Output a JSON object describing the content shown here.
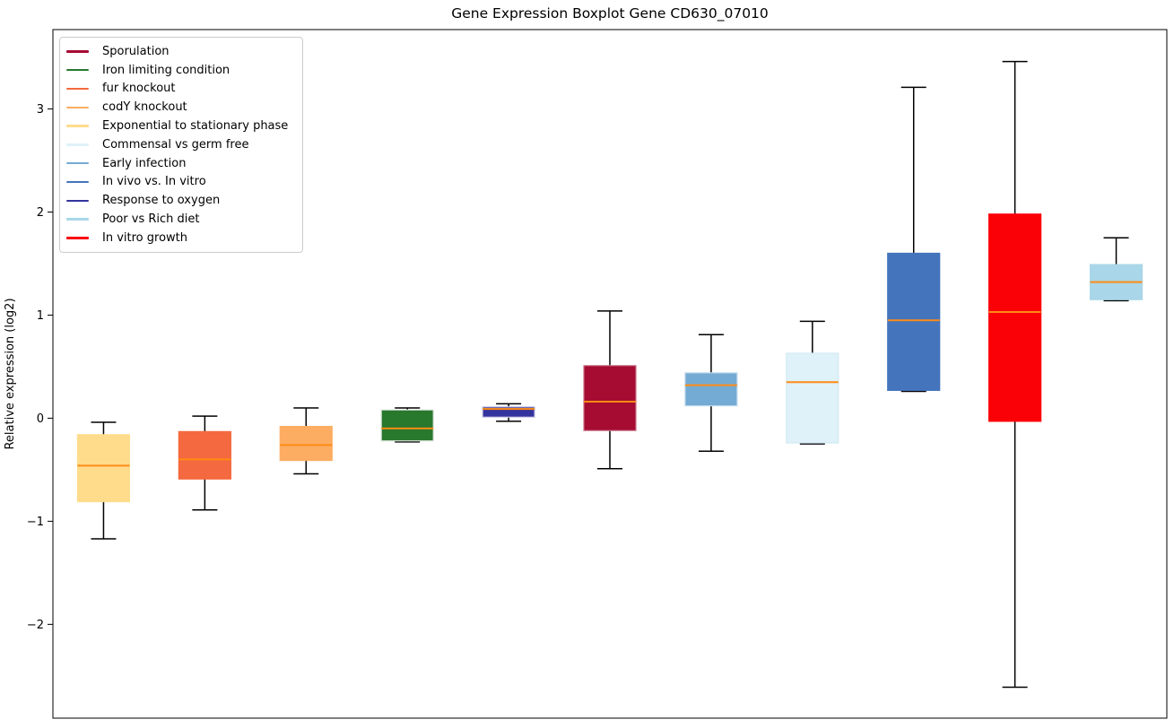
{
  "chart_data": {
    "type": "boxplot",
    "title": "Gene Expression Boxplot Gene CD630_07010",
    "ylabel": "Relative expression (log2)",
    "xlabel": "",
    "ylim": [
      -2.91,
      3.77
    ],
    "grid": false,
    "legend_position": "upper left",
    "median_color": "#ff8c14",
    "whisker_color": "#000000",
    "yticks": [
      {
        "value": 3,
        "label": "3"
      },
      {
        "value": 2,
        "label": "2"
      },
      {
        "value": 1,
        "label": "1"
      },
      {
        "value": 0,
        "label": "0"
      },
      {
        "value": -1,
        "label": "−1"
      },
      {
        "value": -2,
        "label": "−2"
      }
    ],
    "legend_order": [
      "Sporulation",
      "Iron limiting condition",
      "fur knockout",
      "codY knockout",
      "Exponential to stationary phase",
      "Commensal vs germ free",
      "Early infection",
      "In vivo vs. In vitro",
      "Response to oxygen",
      "Poor vs Rich diet",
      "In vitro growth"
    ],
    "boxes": [
      {
        "label": "Exponential to stationary phase",
        "color": "#fedc8c",
        "edge_color": "#fedc8c",
        "whislo": -1.17,
        "q1": -0.81,
        "med": -0.46,
        "q3": -0.16,
        "whishi": -0.04
      },
      {
        "label": "fur knockout",
        "color": "#f4693f",
        "edge_color": "#f4693f",
        "whislo": -0.89,
        "q1": -0.59,
        "med": -0.4,
        "q3": -0.13,
        "whishi": 0.02
      },
      {
        "label": "codY knockout",
        "color": "#fcad62",
        "edge_color": "#fcad62",
        "whislo": -0.54,
        "q1": -0.41,
        "med": -0.26,
        "q3": -0.08,
        "whishi": 0.1
      },
      {
        "label": "Iron limiting condition",
        "color": "#28782e",
        "edge_color": "#d6e2d6",
        "whislo": -0.23,
        "q1": -0.22,
        "med": -0.1,
        "q3": 0.08,
        "whishi": 0.1
      },
      {
        "label": "Response to oxygen",
        "color": "#34349e",
        "edge_color": "#cacae6",
        "whislo": -0.03,
        "q1": 0.01,
        "med": 0.09,
        "q3": 0.11,
        "whishi": 0.14
      },
      {
        "label": "Sporulation",
        "color": "#a60b32",
        "edge_color": "#c97086",
        "whislo": -0.49,
        "q1": -0.12,
        "med": 0.16,
        "q3": 0.51,
        "whishi": 1.04
      },
      {
        "label": "Early infection",
        "color": "#74abd4",
        "edge_color": "#c2daec",
        "whislo": -0.32,
        "q1": 0.12,
        "med": 0.32,
        "q3": 0.44,
        "whishi": 0.81
      },
      {
        "label": "Commensal vs germ free",
        "color": "#e0f2f9",
        "edge_color": "#d2e9f2",
        "whislo": -0.25,
        "q1": -0.24,
        "med": 0.35,
        "q3": 0.63,
        "whishi": 0.94
      },
      {
        "label": "In vivo vs. In vitro",
        "color": "#4474bc",
        "edge_color": "#4474bc",
        "whislo": 0.26,
        "q1": 0.27,
        "med": 0.95,
        "q3": 1.6,
        "whishi": 3.21
      },
      {
        "label": "In vitro growth",
        "color": "#fa0007",
        "edge_color": "#fa0007",
        "whislo": -2.61,
        "q1": -0.03,
        "med": 1.03,
        "q3": 1.98,
        "whishi": 3.46
      },
      {
        "label": "Poor vs Rich diet",
        "color": "#a9d6e8",
        "edge_color": "#a9d6e8",
        "whislo": 1.14,
        "q1": 1.15,
        "med": 1.32,
        "q3": 1.49,
        "whishi": 1.75
      }
    ]
  }
}
